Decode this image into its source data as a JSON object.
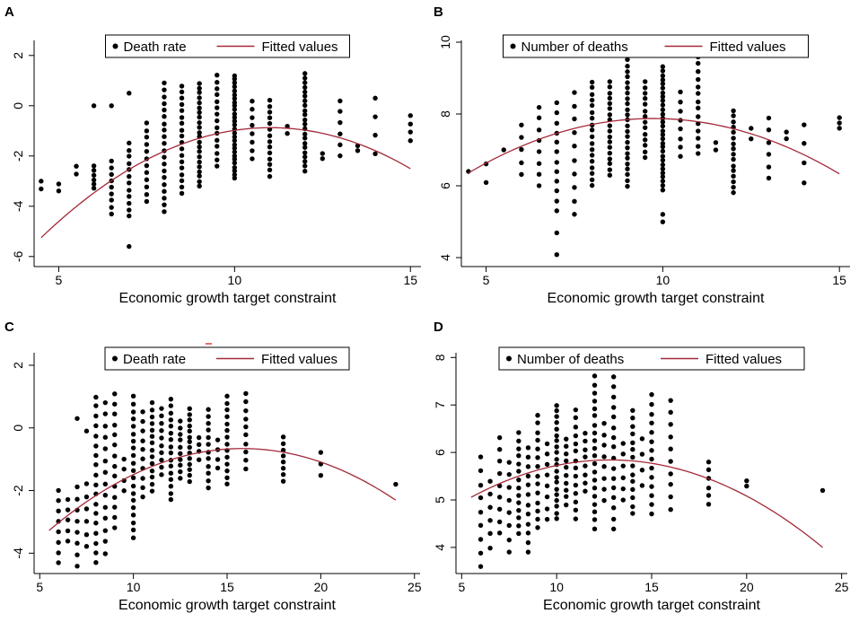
{
  "chart_data": [
    {
      "type": "scatter",
      "panel_label": "A",
      "legend": {
        "entries": [
          "Death rate",
          "Fitted values"
        ],
        "placement": "top-center"
      },
      "xlabel": "Economic growth target constraint",
      "ylabel": "",
      "xlim": [
        4.3,
        15.3
      ],
      "ylim": [
        -6.4,
        2.6
      ],
      "xticks": [
        5,
        10,
        15
      ],
      "yticks": [
        -6,
        -4,
        -2,
        0,
        2
      ],
      "fit": {
        "a": -0.103,
        "b": 2.27,
        "c": -13.38,
        "x_range": [
          4.5,
          15
        ]
      },
      "clusters": [
        {
          "x": 4.5,
          "lo": -3.3,
          "hi": -3.0,
          "n": 2
        },
        {
          "x": 5,
          "lo": -3.4,
          "hi": -3.1,
          "n": 2
        },
        {
          "x": 5.5,
          "lo": -2.7,
          "hi": -2.4,
          "n": 2
        },
        {
          "x": 6,
          "lo": -3.3,
          "hi": -2.4,
          "n": 6
        },
        {
          "x": 6,
          "lo": 0.0,
          "hi": 0.0,
          "n": 1
        },
        {
          "x": 6.5,
          "lo": -4.3,
          "hi": -2.2,
          "n": 9
        },
        {
          "x": 6.5,
          "lo": 0.0,
          "hi": 0.0,
          "n": 1
        },
        {
          "x": 7,
          "lo": -4.4,
          "hi": -1.5,
          "n": 12
        },
        {
          "x": 7,
          "lo": -5.6,
          "hi": -5.6,
          "n": 1
        },
        {
          "x": 7,
          "lo": 0.5,
          "hi": 0.5,
          "n": 1
        },
        {
          "x": 7.5,
          "lo": -3.8,
          "hi": -0.7,
          "n": 12
        },
        {
          "x": 8,
          "lo": -4.2,
          "hi": 0.9,
          "n": 20
        },
        {
          "x": 8.5,
          "lo": -3.5,
          "hi": 0.8,
          "n": 18
        },
        {
          "x": 9,
          "lo": -3.2,
          "hi": 0.9,
          "n": 22
        },
        {
          "x": 9.5,
          "lo": -2.4,
          "hi": 1.2,
          "n": 15
        },
        {
          "x": 10,
          "lo": -2.9,
          "hi": 1.2,
          "n": 28
        },
        {
          "x": 10.5,
          "lo": -2.1,
          "hi": 0.2,
          "n": 8
        },
        {
          "x": 11,
          "lo": -2.8,
          "hi": 0.2,
          "n": 14
        },
        {
          "x": 11.5,
          "lo": -1.1,
          "hi": -0.8,
          "n": 2
        },
        {
          "x": 12,
          "lo": -2.6,
          "hi": 1.3,
          "n": 22
        },
        {
          "x": 12.5,
          "lo": -2.1,
          "hi": -1.9,
          "n": 2
        },
        {
          "x": 13,
          "lo": -2.0,
          "hi": 0.2,
          "n": 6
        },
        {
          "x": 13.5,
          "lo": -1.8,
          "hi": -1.6,
          "n": 2
        },
        {
          "x": 14,
          "lo": -1.9,
          "hi": 0.3,
          "n": 4
        },
        {
          "x": 15,
          "lo": -1.4,
          "hi": -0.4,
          "n": 4
        }
      ]
    },
    {
      "type": "scatter",
      "panel_label": "B",
      "legend": {
        "entries": [
          "Number of deaths",
          "Fitted values"
        ],
        "placement": "top-center"
      },
      "xlabel": "Economic growth target constraint",
      "ylabel": "",
      "xlim": [
        4.3,
        15.3
      ],
      "ylim": [
        3.75,
        10.05
      ],
      "xticks": [
        5,
        10,
        15
      ],
      "yticks": [
        4,
        6,
        8,
        10
      ],
      "fit": {
        "a": -0.0555,
        "b": 1.08,
        "c": 2.62,
        "x_range": [
          4.5,
          15
        ]
      },
      "clusters": [
        {
          "x": 4.5,
          "lo": 6.4,
          "hi": 6.4,
          "n": 1
        },
        {
          "x": 5,
          "lo": 6.1,
          "hi": 6.6,
          "n": 2
        },
        {
          "x": 5.5,
          "lo": 7.0,
          "hi": 7.0,
          "n": 1
        },
        {
          "x": 6,
          "lo": 6.3,
          "hi": 7.7,
          "n": 5
        },
        {
          "x": 6.5,
          "lo": 6.0,
          "hi": 8.2,
          "n": 8
        },
        {
          "x": 7,
          "lo": 5.3,
          "hi": 8.3,
          "n": 12
        },
        {
          "x": 7,
          "lo": 4.1,
          "hi": 4.7,
          "n": 2
        },
        {
          "x": 7.5,
          "lo": 5.2,
          "hi": 8.6,
          "n": 10
        },
        {
          "x": 8,
          "lo": 6.0,
          "hi": 8.9,
          "n": 18
        },
        {
          "x": 8.5,
          "lo": 6.3,
          "hi": 8.9,
          "n": 18
        },
        {
          "x": 9,
          "lo": 6.0,
          "hi": 9.5,
          "n": 24
        },
        {
          "x": 9.5,
          "lo": 6.8,
          "hi": 8.9,
          "n": 14
        },
        {
          "x": 10,
          "lo": 5.9,
          "hi": 9.3,
          "n": 30
        },
        {
          "x": 10,
          "lo": 5.0,
          "hi": 5.2,
          "n": 2
        },
        {
          "x": 10.5,
          "lo": 6.8,
          "hi": 8.6,
          "n": 8
        },
        {
          "x": 11,
          "lo": 6.9,
          "hi": 9.6,
          "n": 14
        },
        {
          "x": 11.5,
          "lo": 7.0,
          "hi": 7.2,
          "n": 2
        },
        {
          "x": 12,
          "lo": 5.8,
          "hi": 8.1,
          "n": 16
        },
        {
          "x": 12.5,
          "lo": 7.3,
          "hi": 7.6,
          "n": 2
        },
        {
          "x": 13,
          "lo": 6.2,
          "hi": 7.9,
          "n": 6
        },
        {
          "x": 13.5,
          "lo": 7.3,
          "hi": 7.5,
          "n": 2
        },
        {
          "x": 14,
          "lo": 6.1,
          "hi": 7.7,
          "n": 4
        },
        {
          "x": 15,
          "lo": 7.6,
          "hi": 7.9,
          "n": 3
        }
      ]
    },
    {
      "type": "scatter",
      "panel_label": "C",
      "legend": {
        "entries": [
          "Death rate",
          "Fitted values"
        ],
        "placement": "top-center"
      },
      "xlabel": "Economic growth target constraint",
      "ylabel": "",
      "xlim": [
        4.7,
        25.3
      ],
      "ylim": [
        -4.65,
        2.4
      ],
      "xticks": [
        5,
        10,
        15,
        20,
        25
      ],
      "yticks": [
        -4,
        -2,
        0,
        2
      ],
      "fit": {
        "a": -0.0246,
        "b": 0.778,
        "c": -6.81,
        "x_range": [
          5.5,
          24
        ]
      },
      "clusters": [
        {
          "x": 6,
          "lo": -4.3,
          "hi": -2.0,
          "n": 8
        },
        {
          "x": 6.5,
          "lo": -3.6,
          "hi": -2.3,
          "n": 5
        },
        {
          "x": 7,
          "lo": -4.4,
          "hi": -1.9,
          "n": 8
        },
        {
          "x": 7,
          "lo": 0.3,
          "hi": 0.3,
          "n": 1
        },
        {
          "x": 7.5,
          "lo": -3.8,
          "hi": -1.8,
          "n": 6
        },
        {
          "x": 7.5,
          "lo": -0.1,
          "hi": -0.1,
          "n": 1
        },
        {
          "x": 8,
          "lo": -4.3,
          "hi": 1.0,
          "n": 18
        },
        {
          "x": 8.5,
          "lo": -4.0,
          "hi": 0.8,
          "n": 14
        },
        {
          "x": 9,
          "lo": -3.2,
          "hi": 1.1,
          "n": 14
        },
        {
          "x": 9.5,
          "lo": -2.0,
          "hi": -1.0,
          "n": 4
        },
        {
          "x": 10,
          "lo": -3.5,
          "hi": 1.0,
          "n": 20
        },
        {
          "x": 10.5,
          "lo": -2.2,
          "hi": 0.5,
          "n": 10
        },
        {
          "x": 11,
          "lo": -2.0,
          "hi": 0.8,
          "n": 14
        },
        {
          "x": 11.5,
          "lo": -1.5,
          "hi": 0.6,
          "n": 10
        },
        {
          "x": 12,
          "lo": -2.3,
          "hi": 0.9,
          "n": 16
        },
        {
          "x": 12.5,
          "lo": -1.6,
          "hi": 0.2,
          "n": 10
        },
        {
          "x": 13,
          "lo": -1.7,
          "hi": 0.6,
          "n": 14
        },
        {
          "x": 13.5,
          "lo": -1.0,
          "hi": -0.3,
          "n": 4
        },
        {
          "x": 14,
          "lo": -1.9,
          "hi": 0.6,
          "n": 12
        },
        {
          "x": 14.5,
          "lo": -1.3,
          "hi": -0.4,
          "n": 4
        },
        {
          "x": 15,
          "lo": -1.8,
          "hi": 1.0,
          "n": 14
        },
        {
          "x": 16,
          "lo": -1.3,
          "hi": 1.1,
          "n": 10
        },
        {
          "x": 18,
          "lo": -1.7,
          "hi": -0.3,
          "n": 8
        },
        {
          "x": 20,
          "lo": -1.5,
          "hi": -0.8,
          "n": 3
        },
        {
          "x": 24,
          "lo": -1.8,
          "hi": -1.8,
          "n": 1
        }
      ]
    },
    {
      "type": "scatter",
      "panel_label": "D",
      "legend": {
        "entries": [
          "Number of deaths",
          "Fitted values"
        ],
        "placement": "top-center"
      },
      "xlabel": "Economic growth target constraint",
      "ylabel": "",
      "xlim": [
        4.7,
        25.3
      ],
      "ylim": [
        3.45,
        8.1
      ],
      "xticks": [
        5,
        10,
        15,
        20,
        25
      ],
      "yticks": [
        4,
        5,
        6,
        7,
        8
      ],
      "fit": {
        "a": -0.0147,
        "b": 0.3766,
        "c": 3.43,
        "x_range": [
          5.5,
          24
        ]
      },
      "clusters": [
        {
          "x": 6,
          "lo": 3.6,
          "hi": 5.9,
          "n": 9
        },
        {
          "x": 6.5,
          "lo": 4.0,
          "hi": 5.4,
          "n": 6
        },
        {
          "x": 7,
          "lo": 4.3,
          "hi": 6.3,
          "n": 9
        },
        {
          "x": 7.5,
          "lo": 3.9,
          "hi": 5.8,
          "n": 8
        },
        {
          "x": 8,
          "lo": 4.3,
          "hi": 6.4,
          "n": 14
        },
        {
          "x": 8.5,
          "lo": 3.9,
          "hi": 6.1,
          "n": 12
        },
        {
          "x": 9,
          "lo": 4.4,
          "hi": 6.8,
          "n": 14
        },
        {
          "x": 9.5,
          "lo": 4.6,
          "hi": 6.2,
          "n": 8
        },
        {
          "x": 10,
          "lo": 4.6,
          "hi": 7.0,
          "n": 20
        },
        {
          "x": 10.5,
          "lo": 4.9,
          "hi": 6.3,
          "n": 10
        },
        {
          "x": 11,
          "lo": 4.6,
          "hi": 6.9,
          "n": 14
        },
        {
          "x": 11.5,
          "lo": 5.2,
          "hi": 6.4,
          "n": 8
        },
        {
          "x": 12,
          "lo": 4.4,
          "hi": 7.6,
          "n": 20
        },
        {
          "x": 12.5,
          "lo": 5.0,
          "hi": 6.6,
          "n": 8
        },
        {
          "x": 13,
          "lo": 4.4,
          "hi": 7.6,
          "n": 16
        },
        {
          "x": 13.5,
          "lo": 5.0,
          "hi": 6.2,
          "n": 6
        },
        {
          "x": 14,
          "lo": 4.7,
          "hi": 6.9,
          "n": 14
        },
        {
          "x": 14.5,
          "lo": 5.3,
          "hi": 6.3,
          "n": 4
        },
        {
          "x": 15,
          "lo": 4.7,
          "hi": 7.2,
          "n": 14
        },
        {
          "x": 16,
          "lo": 4.8,
          "hi": 7.1,
          "n": 10
        },
        {
          "x": 18,
          "lo": 4.9,
          "hi": 5.8,
          "n": 6
        },
        {
          "x": 20,
          "lo": 5.3,
          "hi": 5.4,
          "n": 2
        },
        {
          "x": 24,
          "lo": 5.2,
          "hi": 5.2,
          "n": 1
        }
      ]
    }
  ],
  "colors": {
    "marker": "#000000",
    "fit_line": "#a4293a",
    "axis": "#000000",
    "stray_mark": "#e23b3b"
  }
}
